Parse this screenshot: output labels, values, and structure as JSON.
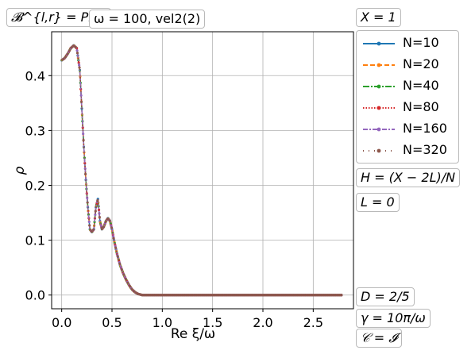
{
  "chart_data": {
    "type": "line",
    "title": "",
    "xlabel": "Re ξ/ω",
    "ylabel": "ρ",
    "xlim": [
      -0.1,
      2.9
    ],
    "ylim": [
      -0.025,
      0.48
    ],
    "xticks": [
      0.0,
      0.5,
      1.0,
      1.5,
      2.0,
      2.5
    ],
    "xtick_labels": [
      "0.0",
      "0.5",
      "1.0",
      "1.5",
      "2.0",
      "2.5"
    ],
    "yticks": [
      0.0,
      0.1,
      0.2,
      0.3,
      0.4
    ],
    "ytick_labels": [
      "0.0",
      "0.1",
      "0.2",
      "0.3",
      "0.4"
    ],
    "grid": true,
    "legend_placement": "outside-right-top",
    "x": [
      0.0,
      0.03,
      0.06,
      0.09,
      0.12,
      0.15,
      0.18,
      0.2,
      0.22,
      0.24,
      0.26,
      0.28,
      0.3,
      0.32,
      0.34,
      0.36,
      0.38,
      0.4,
      0.42,
      0.44,
      0.46,
      0.48,
      0.5,
      0.52,
      0.55,
      0.58,
      0.61,
      0.64,
      0.67,
      0.7,
      0.73,
      0.76,
      0.8,
      0.85,
      0.9,
      1.0,
      1.2,
      1.5,
      2.0,
      2.5,
      2.78
    ],
    "series": [
      {
        "name": "N=10",
        "color": "#1f77b4",
        "dash": "solid",
        "marker": "dot"
      },
      {
        "name": "N=20",
        "color": "#ff7f0e",
        "dash": "6,3",
        "marker": "dot"
      },
      {
        "name": "N=40",
        "color": "#2ca02c",
        "dash": "8,2,2,2",
        "marker": "dot"
      },
      {
        "name": "N=80",
        "color": "#d62728",
        "dash": "1.5,2",
        "marker": "dot"
      },
      {
        "name": "N=160",
        "color": "#9467bd",
        "dash": "6,2,2,2",
        "marker": "dot"
      },
      {
        "name": "N=320",
        "color": "#8c564b",
        "dash": "1,6",
        "marker": "dot"
      }
    ],
    "values": [
      0.428,
      0.432,
      0.44,
      0.45,
      0.455,
      0.45,
      0.41,
      0.34,
      0.27,
      0.21,
      0.16,
      0.12,
      0.115,
      0.12,
      0.16,
      0.175,
      0.135,
      0.12,
      0.125,
      0.135,
      0.14,
      0.135,
      0.12,
      0.1,
      0.075,
      0.055,
      0.04,
      0.028,
      0.018,
      0.01,
      0.005,
      0.002,
      0.0,
      0.0,
      0.0,
      0.0,
      0.0,
      0.0,
      0.0,
      0.0,
      0.0
    ]
  },
  "annotations": {
    "bc": "𝓑^{l,r} = PML",
    "omega": "ω = 100, vel2(2)",
    "X": "X = 1",
    "H": "H = (X − 2L)/N",
    "L": "L = 0",
    "D": "D = 2/5",
    "gamma": "γ = 10π/ω",
    "C": "𝒞 = 𝓘"
  }
}
